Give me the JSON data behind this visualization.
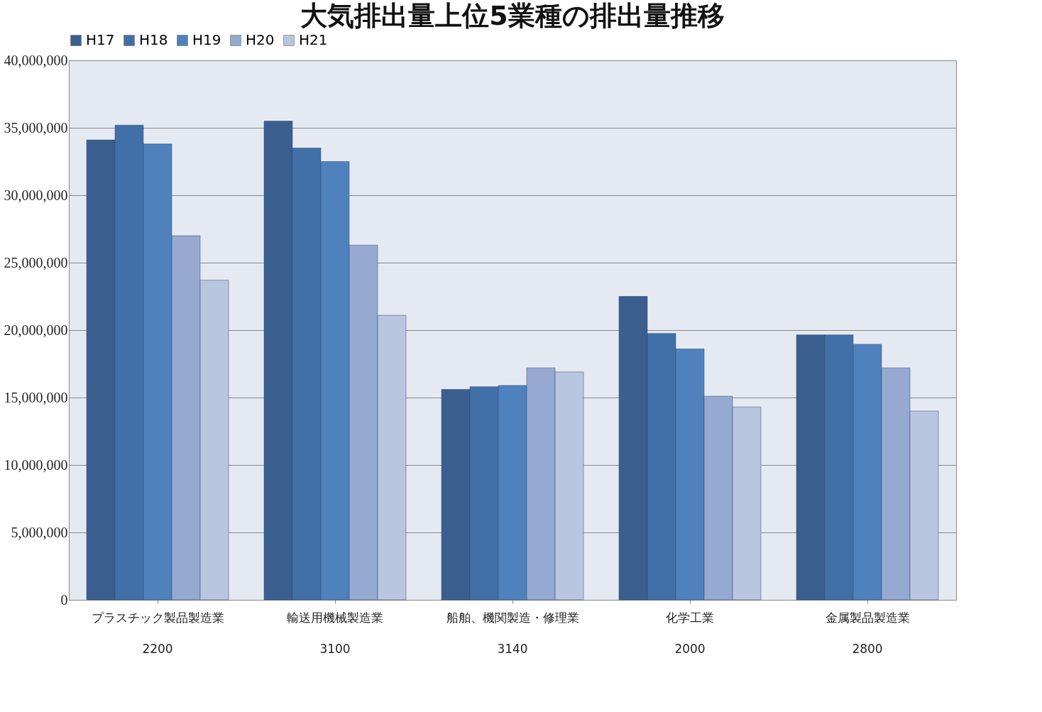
{
  "chart_data": {
    "type": "bar",
    "title": "大気排出量上位5業種の排出量推移",
    "categories": [
      "プラスチック製品製造業\n2200",
      "輸送用機械製造業\n3100",
      "船舶、機関製造・修理業\n3140",
      "化学工業\n2000",
      "金属製品製造業\n2800"
    ],
    "series": [
      {
        "name": "H17",
        "color": "#3a5f8f",
        "values": [
          34100000,
          35500000,
          15600000,
          22500000,
          19650000
        ]
      },
      {
        "name": "H18",
        "color": "#4170a8",
        "values": [
          35200000,
          33500000,
          15800000,
          19750000,
          19650000
        ]
      },
      {
        "name": "H19",
        "color": "#4f81bd",
        "values": [
          33800000,
          32500000,
          15900000,
          18600000,
          18950000
        ]
      },
      {
        "name": "H20",
        "color": "#95a9d1",
        "values": [
          27000000,
          26300000,
          17200000,
          15100000,
          17200000
        ]
      },
      {
        "name": "H21",
        "color": "#b9c6e0",
        "values": [
          23700000,
          21100000,
          16900000,
          14300000,
          14000000
        ]
      }
    ],
    "ylim": [
      0,
      40000000
    ],
    "yticks": [
      0,
      {
        "value": 5000000,
        "label": "5,000,000"
      },
      {
        "value": 10000000,
        "label": "10,000,000"
      },
      {
        "value": 15000000,
        "label": "15,000,000"
      },
      {
        "value": 20000000,
        "label": "20,000,000"
      },
      {
        "value": 25000000,
        "label": "25,000,000"
      },
      {
        "value": 30000000,
        "label": "30,000,000"
      },
      {
        "value": 35000000,
        "label": "35,000,000"
      },
      {
        "value": 40000000,
        "label": "40,000,000"
      }
    ],
    "grid": "y",
    "legend": "top"
  }
}
